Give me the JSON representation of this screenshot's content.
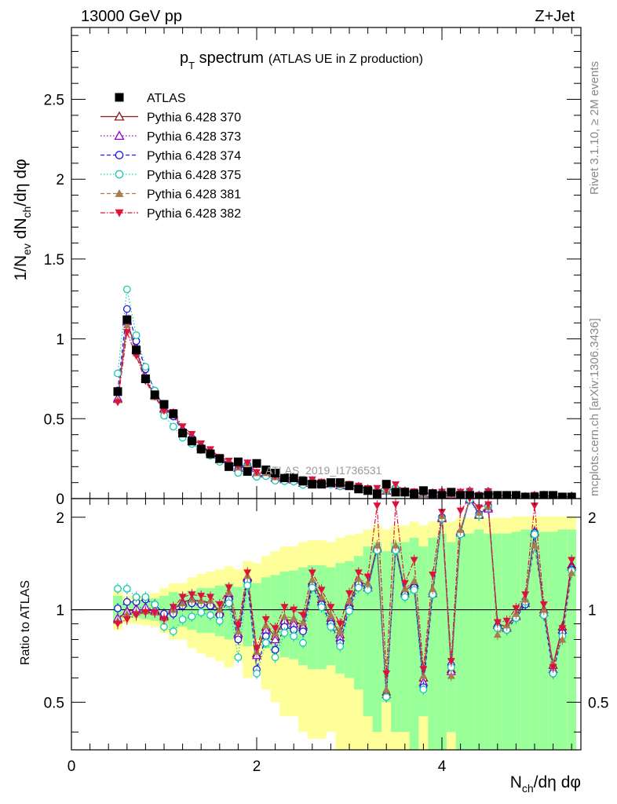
{
  "header": {
    "energy_label": "13000 GeV pp",
    "process_label": "Z+Jet"
  },
  "side_labels": {
    "rivet": "Rivet 3.1.10, ≥ 2M events",
    "mcplots": "mcplots.cern.ch [arXiv:1306.3436]"
  },
  "watermark": "ATLAS_2019_I1736531",
  "chart_data": {
    "type": "scatter",
    "title_main": "p",
    "title_sub": "T",
    "title_rest": " spectrum",
    "title_note": "(ATLAS UE in Z production)",
    "xlabel": "N_ch/dη dφ",
    "ylabel": "1/N_ev dN_ch/dη dφ",
    "ratio_ylabel": "Ratio to ATLAS",
    "xlim": [
      0,
      5.5
    ],
    "ylim": [
      0,
      2.95
    ],
    "ratio_ylim": [
      0.35,
      2.3
    ],
    "x_ticks": [
      "0",
      "2",
      "4"
    ],
    "y_ticks": [
      "0",
      "0.5",
      "1",
      "1.5",
      "2",
      "2.5"
    ],
    "ratio_ticks": [
      "0.5",
      "1",
      "2"
    ],
    "legend_position": "top-left",
    "x": [
      0.5,
      0.6,
      0.7,
      0.8,
      0.9,
      1.0,
      1.1,
      1.2,
      1.3,
      1.4,
      1.5,
      1.6,
      1.7,
      1.8,
      1.9,
      2.0,
      2.1,
      2.2,
      2.3,
      2.4,
      2.5,
      2.6,
      2.7,
      2.8,
      2.9,
      3.0,
      3.1,
      3.2,
      3.3,
      3.4,
      3.5,
      3.6,
      3.7,
      3.8,
      3.9,
      4.0,
      4.1,
      4.2,
      4.3,
      4.4,
      4.5,
      4.6,
      4.7,
      4.8,
      4.9,
      5.0,
      5.1,
      5.2,
      5.3,
      5.4
    ],
    "data": {
      "name": "ATLAS",
      "values": [
        0.67,
        1.12,
        0.93,
        0.75,
        0.65,
        0.59,
        0.53,
        0.41,
        0.36,
        0.31,
        0.28,
        0.25,
        0.2,
        0.23,
        0.17,
        0.22,
        0.18,
        0.16,
        0.13,
        0.13,
        0.11,
        0.09,
        0.09,
        0.1,
        0.1,
        0.08,
        0.06,
        0.05,
        0.03,
        0.09,
        0.04,
        0.04,
        0.03,
        0.05,
        0.03,
        0.02,
        0.04,
        0.02,
        0.02,
        0.01,
        0.02,
        0.02,
        0.02,
        0.02,
        0.01,
        0.01,
        0.02,
        0.02,
        0.01,
        0.01
      ]
    },
    "mc_band_ratio_stat": [
      0.1,
      0.06,
      0.06,
      0.07,
      0.08,
      0.1,
      0.13,
      0.12,
      0.14,
      0.16,
      0.16,
      0.18,
      0.2,
      0.17,
      0.24,
      0.2,
      0.25,
      0.27,
      0.3,
      0.31,
      0.34,
      0.36,
      0.36,
      0.34,
      0.38,
      0.4,
      0.45,
      0.55,
      0.6,
      0.5,
      0.6,
      0.6,
      0.65,
      0.55,
      0.65,
      0.7,
      0.6,
      0.7,
      0.7,
      0.75,
      0.7,
      0.7,
      0.7,
      0.72,
      0.75,
      0.75,
      0.72,
      0.72,
      0.75,
      0.75
    ],
    "mc_band_ratio_total": [
      0.14,
      0.1,
      0.1,
      0.11,
      0.12,
      0.16,
      0.2,
      0.2,
      0.25,
      0.28,
      0.3,
      0.32,
      0.35,
      0.32,
      0.4,
      0.38,
      0.45,
      0.5,
      0.55,
      0.55,
      0.6,
      0.62,
      0.62,
      0.6,
      0.65,
      0.68,
      0.7,
      0.75,
      0.8,
      0.75,
      0.8,
      0.8,
      0.85,
      0.8,
      0.85,
      0.9,
      0.85,
      0.9,
      0.9,
      0.92,
      0.9,
      0.9,
      0.9,
      0.92,
      0.92,
      0.92,
      0.92,
      0.92,
      0.92,
      0.92
    ],
    "series": [
      {
        "name": "Pythia 6.428 370",
        "color": "#8b1a1a",
        "marker": "triangle-open",
        "dash": "solid",
        "ratio": [
          0.93,
          0.99,
          1.0,
          1.0,
          0.99,
          0.95,
          1.0,
          1.06,
          1.08,
          1.06,
          1.06,
          0.99,
          1.13,
          0.84,
          1.28,
          0.72,
          0.88,
          0.82,
          0.93,
          0.92,
          0.89,
          1.24,
          1.08,
          0.94,
          0.83,
          1.05,
          1.24,
          1.2,
          1.6,
          0.54,
          1.6,
          1.15,
          1.22,
          0.6,
          1.15,
          2.0,
          0.64,
          1.8,
          2.3,
          2.05,
          2.15,
          0.9,
          0.88,
          0.96,
          1.07,
          1.8,
          1.0,
          0.66,
          0.88,
          1.4
        ]
      },
      {
        "name": "Pythia 6.428 373",
        "color": "#9400d3",
        "marker": "triangle-open",
        "dash": "dotted",
        "ratio": [
          0.94,
          0.99,
          1.01,
          1.02,
          1.0,
          0.96,
          1.01,
          1.05,
          1.08,
          1.06,
          1.05,
          0.98,
          1.11,
          0.83,
          1.27,
          0.71,
          0.86,
          0.8,
          0.92,
          0.9,
          0.88,
          1.22,
          1.06,
          0.92,
          0.81,
          1.03,
          1.22,
          1.18,
          1.58,
          0.53,
          1.58,
          1.13,
          1.2,
          0.58,
          1.13,
          1.98,
          0.63,
          1.78,
          2.28,
          2.03,
          2.13,
          0.89,
          0.87,
          0.95,
          1.05,
          1.78,
          0.98,
          0.64,
          0.86,
          1.38
        ]
      },
      {
        "name": "Pythia 6.428 374",
        "color": "#1a1adb",
        "marker": "circle-open",
        "dash": "dashed",
        "ratio": [
          1.01,
          1.06,
          1.06,
          1.08,
          1.04,
          0.97,
          0.97,
          1.03,
          1.05,
          1.04,
          1.03,
          0.96,
          1.08,
          0.8,
          1.24,
          0.64,
          0.82,
          0.74,
          0.88,
          0.86,
          0.85,
          1.2,
          1.04,
          0.9,
          0.78,
          1.01,
          1.21,
          1.18,
          1.58,
          0.52,
          1.58,
          1.12,
          1.18,
          0.56,
          1.12,
          2.0,
          0.66,
          1.78,
          2.3,
          2.05,
          2.18,
          0.88,
          0.86,
          0.94,
          1.04,
          1.78,
          0.96,
          0.62,
          0.84,
          1.35
        ]
      },
      {
        "name": "Pythia 6.428 375",
        "color": "#17c9b0",
        "marker": "circle-open",
        "dash": "dotted",
        "ratio": [
          1.17,
          1.17,
          1.1,
          1.1,
          1.04,
          0.88,
          0.85,
          0.93,
          0.95,
          0.98,
          0.96,
          0.92,
          1.05,
          0.7,
          1.2,
          0.62,
          0.78,
          0.7,
          0.84,
          0.82,
          0.78,
          1.18,
          1.02,
          0.88,
          0.76,
          0.99,
          1.18,
          1.16,
          1.56,
          0.52,
          1.56,
          1.1,
          1.16,
          0.55,
          1.12,
          1.98,
          0.65,
          1.76,
          2.28,
          2.03,
          2.16,
          0.87,
          0.86,
          0.94,
          1.06,
          1.76,
          0.96,
          0.62,
          0.82,
          1.34
        ]
      },
      {
        "name": "Pythia 6.428 381",
        "color": "#a67c52",
        "marker": "triangle-filled",
        "dash": "dashed",
        "ratio": [
          0.92,
          0.97,
          0.98,
          0.99,
          0.98,
          0.94,
          1.0,
          1.05,
          1.08,
          1.07,
          1.07,
          1.0,
          1.14,
          0.85,
          1.29,
          0.73,
          0.89,
          0.84,
          0.95,
          0.94,
          0.91,
          1.25,
          1.1,
          0.96,
          0.85,
          1.07,
          1.26,
          1.22,
          1.62,
          0.55,
          1.62,
          1.17,
          1.24,
          0.61,
          1.17,
          2.02,
          0.61,
          1.82,
          2.32,
          2.07,
          2.17,
          0.83,
          0.89,
          0.97,
          1.08,
          1.62,
          1.0,
          0.67,
          0.8,
          1.32
        ]
      },
      {
        "name": "Pythia 6.428 382",
        "color": "#dc143c",
        "marker": "triangle-down-filled",
        "dash": "dashdot",
        "ratio": [
          0.9,
          0.93,
          0.96,
          0.98,
          0.98,
          0.93,
          1.02,
          1.1,
          1.12,
          1.11,
          1.1,
          1.04,
          1.18,
          0.89,
          1.32,
          0.75,
          0.93,
          0.87,
          1.02,
          1.0,
          0.96,
          1.32,
          1.16,
          1.02,
          0.9,
          1.13,
          1.32,
          1.28,
          2.18,
          0.62,
          2.2,
          1.22,
          1.45,
          0.64,
          1.3,
          2.08,
          0.68,
          2.1,
          2.3,
          2.15,
          2.2,
          0.91,
          0.92,
          1.01,
          1.12,
          2.18,
          1.04,
          0.65,
          0.87,
          1.45
        ]
      }
    ]
  }
}
